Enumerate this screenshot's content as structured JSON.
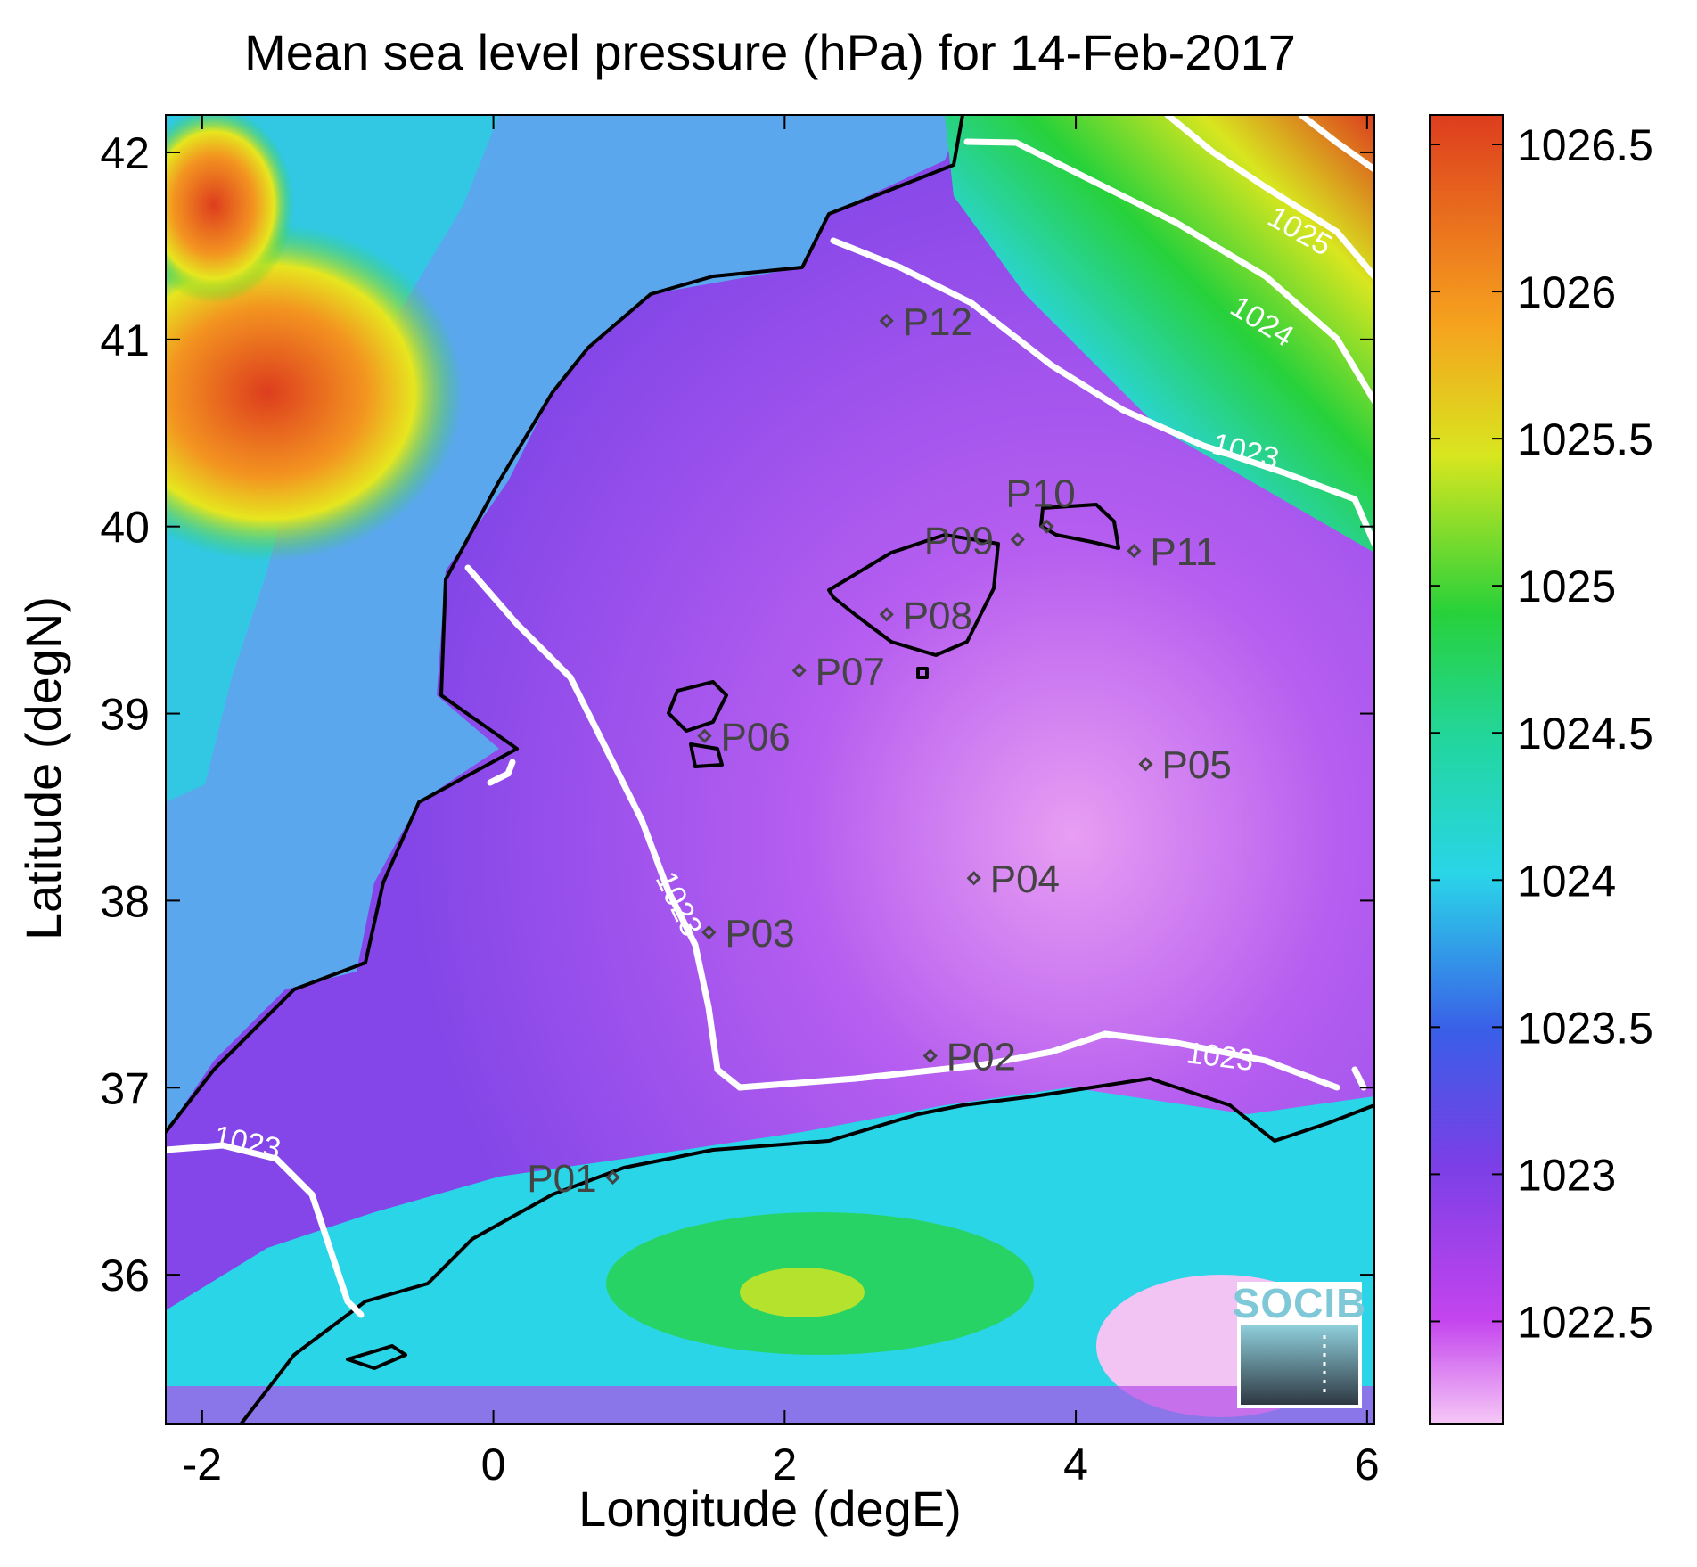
{
  "title": "Mean sea level pressure (hPa) for 14-Feb-2017",
  "xlabel": "Longitude (degE)",
  "ylabel": "Latitude (degN)",
  "x_ticks": [
    "-2",
    "0",
    "2",
    "4",
    "6"
  ],
  "y_ticks": [
    "36",
    "37",
    "38",
    "39",
    "40",
    "41",
    "42"
  ],
  "colorbar_ticks": [
    "1022.5",
    "1023",
    "1023.5",
    "1024",
    "1024.5",
    "1025",
    "1025.5",
    "1026",
    "1026.5"
  ],
  "logo": "SOCIB",
  "contour_labels": [
    "1025",
    "1024",
    "1023",
    "1023",
    "1023",
    "1023"
  ],
  "chart_data": {
    "type": "heatmap",
    "title": "Mean sea level pressure (hPa) for 14-Feb-2017",
    "xlabel": "Longitude (degE)",
    "ylabel": "Latitude (degN)",
    "xlim": [
      -2.25,
      6.05
    ],
    "ylim": [
      35.2,
      42.2
    ],
    "colorbar_range": [
      1022.15,
      1026.6
    ],
    "colorbar_label_values": [
      1022.5,
      1023,
      1023.5,
      1024,
      1024.5,
      1025,
      1025.5,
      1026,
      1026.5
    ],
    "contour_levels": [
      1023,
      1024,
      1025
    ],
    "points": [
      {
        "name": "P01",
        "lon": 0.82,
        "lat": 36.52
      },
      {
        "name": "P02",
        "lon": 3.0,
        "lat": 37.17
      },
      {
        "name": "P03",
        "lon": 1.48,
        "lat": 37.83
      },
      {
        "name": "P04",
        "lon": 3.3,
        "lat": 38.12
      },
      {
        "name": "P05",
        "lon": 4.48,
        "lat": 38.73
      },
      {
        "name": "P06",
        "lon": 1.45,
        "lat": 38.88
      },
      {
        "name": "P07",
        "lon": 2.1,
        "lat": 39.23
      },
      {
        "name": "P08",
        "lon": 2.7,
        "lat": 39.53
      },
      {
        "name": "P09",
        "lon": 3.6,
        "lat": 39.93
      },
      {
        "name": "P10",
        "lon": 3.8,
        "lat": 40.0
      },
      {
        "name": "P11",
        "lon": 4.4,
        "lat": 39.87
      },
      {
        "name": "P12",
        "lon": 2.7,
        "lat": 41.1
      }
    ],
    "colors": {
      "low": "#f4bff4",
      "mid_low": "#7a3fe6",
      "mid": "#2ad5e8",
      "mid_high": "#27d13a",
      "high_mid": "#e8e81f",
      "high": "#e0451f",
      "contour": "#ffffff",
      "coast": "#000000"
    }
  }
}
